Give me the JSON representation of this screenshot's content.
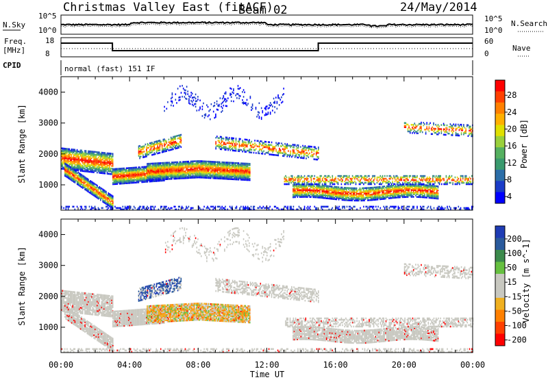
{
  "header": {
    "station": "Christmas Valley East (fitACF)",
    "beam": "Beam 02",
    "date": "24/May/2014"
  },
  "strip_panels": {
    "nsky_label": "N.Sky",
    "nsky_ticks": [
      "10^5",
      "10^0"
    ],
    "nsearch_label": "N.Search",
    "nsearch_ticks": [
      "10^5",
      "10^0"
    ],
    "freq_label_1": "Freq.",
    "freq_label_2": "[MHz]",
    "freq_ticks": [
      "18",
      "8"
    ],
    "nave_label": "Nave",
    "nave_ticks": [
      "60",
      "0"
    ],
    "cpid_label": "CPID",
    "cpid_value": "normal (fast) 151 IF"
  },
  "chart_data": [
    {
      "type": "heatmap",
      "name": "power",
      "ylabel": "Slant Range [km]",
      "xlabel": "",
      "x_ticks": [
        "00:00",
        "04:00",
        "08:00",
        "12:00",
        "16:00",
        "20:00",
        "00:00"
      ],
      "y_ticks": [
        1000,
        2000,
        3000,
        4000
      ],
      "xlim_hours": [
        0,
        24
      ],
      "ylim_km": [
        180,
        4500
      ],
      "colorbar_label": "Power [dB]",
      "colorbar_ticks": [
        "28",
        "24",
        "20",
        "16",
        "12",
        "8",
        "4"
      ],
      "colorbar_colors": [
        "#ff0000",
        "#ff4000",
        "#ff8000",
        "#ffb000",
        "#e0e000",
        "#9ad03c",
        "#55b060",
        "#3a9a6e",
        "#2c6ea8",
        "#1a3cc8",
        "#0000ff"
      ]
    },
    {
      "type": "heatmap",
      "name": "velocity",
      "ylabel": "Slant Range [km]",
      "xlabel": "Time UT",
      "x_ticks": [
        "00:00",
        "04:00",
        "08:00",
        "12:00",
        "16:00",
        "20:00",
        "00:00"
      ],
      "y_ticks": [
        1000,
        2000,
        3000,
        4000
      ],
      "xlim_hours": [
        0,
        24
      ],
      "ylim_km": [
        180,
        4500
      ],
      "colorbar_label": "Velocity [m s^-1]",
      "colorbar_ticks": [
        "200",
        "100",
        "50",
        "15",
        "-15",
        "-50",
        "-100",
        "-200"
      ],
      "colorbar_colors": [
        "#1e3cb4",
        "#2a5a9c",
        "#3c8a4c",
        "#66c040",
        "#c8c8c0",
        "#c8c8c0",
        "#f0b020",
        "#ff8000",
        "#ff4000",
        "#ff0000"
      ]
    }
  ]
}
